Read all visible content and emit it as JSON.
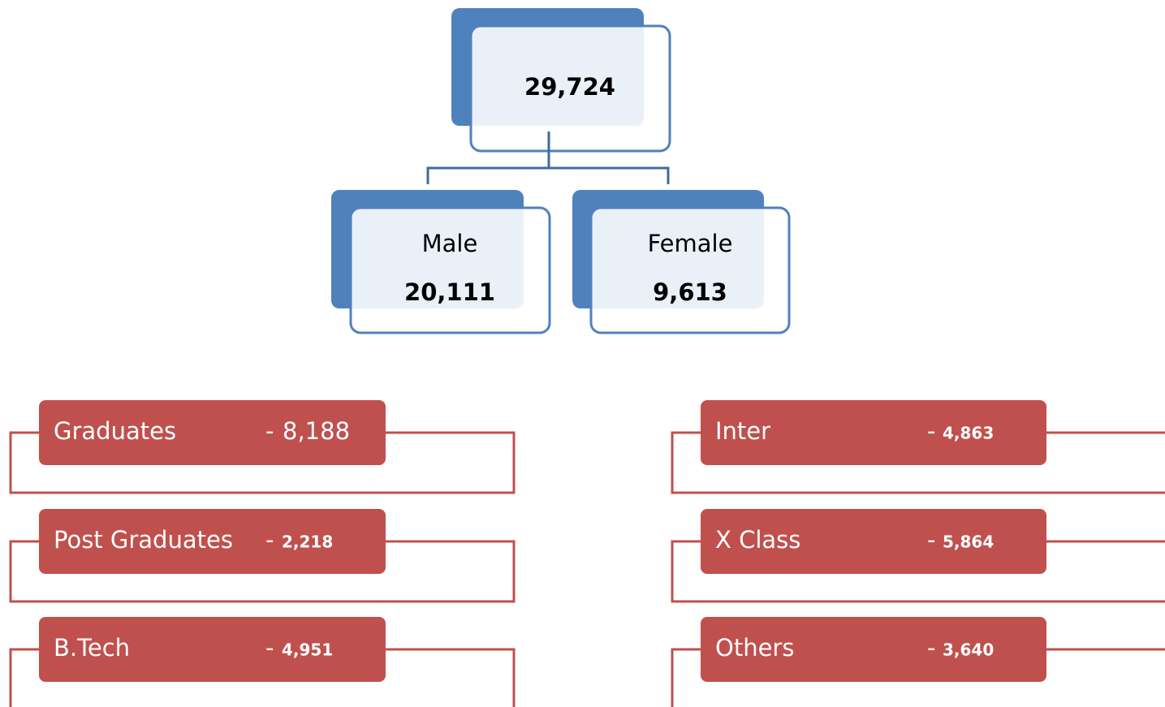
{
  "root": {
    "value": "29,724"
  },
  "children": [
    {
      "label": "Male",
      "value": "20,111"
    },
    {
      "label": "Female",
      "value": "9,613"
    }
  ],
  "items": [
    {
      "label": "Graduates",
      "separator": "-",
      "value": "8,188"
    },
    {
      "label": "Post Graduates",
      "separator": "-",
      "value": "2,218"
    },
    {
      "label": "B.Tech",
      "separator": "-",
      "value": "4,951"
    },
    {
      "label": "Inter",
      "separator": "-",
      "value": "4,863"
    },
    {
      "label": "X Class",
      "separator": "-",
      "value": "5,864"
    },
    {
      "label": "Others",
      "separator": "-",
      "value": "3,640"
    }
  ]
}
